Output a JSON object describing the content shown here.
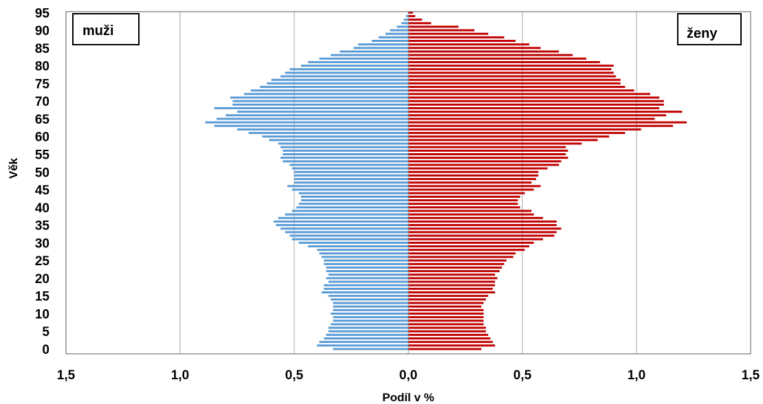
{
  "chart_data": {
    "type": "bar",
    "orientation": "horizontal",
    "xlabel": "Podíl v %",
    "ylabel": "Věk",
    "xlim": [
      -1.5,
      1.5
    ],
    "ylim": [
      0,
      95
    ],
    "x_ticks": [
      -1.5,
      -1.0,
      -0.5,
      0.0,
      0.5,
      1.0,
      1.5
    ],
    "x_tick_labels": [
      "1,5",
      "1,0",
      "0,5",
      "0,0",
      "0,5",
      "1,0",
      "1,5"
    ],
    "y_ticks": [
      0,
      5,
      10,
      15,
      20,
      25,
      30,
      35,
      40,
      45,
      50,
      55,
      60,
      65,
      70,
      75,
      80,
      85,
      90,
      95
    ],
    "y_tick_labels": [
      "0",
      "5",
      "10",
      "15",
      "20",
      "25",
      "30",
      "35",
      "40",
      "45",
      "50",
      "55",
      "60",
      "65",
      "70",
      "75",
      "80",
      "85",
      "90",
      "95"
    ],
    "grid": "vertical",
    "ages": [
      0,
      1,
      2,
      3,
      4,
      5,
      6,
      7,
      8,
      9,
      10,
      11,
      12,
      13,
      14,
      15,
      16,
      17,
      18,
      19,
      20,
      21,
      22,
      23,
      24,
      25,
      26,
      27,
      28,
      29,
      30,
      31,
      32,
      33,
      34,
      35,
      36,
      37,
      38,
      39,
      40,
      41,
      42,
      43,
      44,
      45,
      46,
      47,
      48,
      49,
      50,
      51,
      52,
      53,
      54,
      55,
      56,
      57,
      58,
      59,
      60,
      61,
      62,
      63,
      64,
      65,
      66,
      67,
      68,
      69,
      70,
      71,
      72,
      73,
      74,
      75,
      76,
      77,
      78,
      79,
      80,
      81,
      82,
      83,
      84,
      85,
      86,
      87,
      88,
      89,
      90,
      91,
      92,
      93,
      94,
      95
    ],
    "series": [
      {
        "name": "muži",
        "color": "#5b9bd5",
        "values": [
          0.33,
          0.4,
          0.39,
          0.37,
          0.36,
          0.35,
          0.35,
          0.34,
          0.33,
          0.33,
          0.34,
          0.33,
          0.33,
          0.33,
          0.34,
          0.35,
          0.38,
          0.37,
          0.37,
          0.35,
          0.36,
          0.35,
          0.36,
          0.36,
          0.37,
          0.37,
          0.38,
          0.39,
          0.4,
          0.44,
          0.48,
          0.51,
          0.52,
          0.54,
          0.56,
          0.58,
          0.59,
          0.57,
          0.54,
          0.51,
          0.49,
          0.48,
          0.47,
          0.47,
          0.48,
          0.51,
          0.53,
          0.5,
          0.5,
          0.5,
          0.5,
          0.51,
          0.52,
          0.55,
          0.56,
          0.55,
          0.55,
          0.56,
          0.57,
          0.61,
          0.64,
          0.7,
          0.75,
          0.85,
          0.89,
          0.84,
          0.8,
          0.75,
          0.85,
          0.77,
          0.77,
          0.78,
          0.72,
          0.69,
          0.65,
          0.62,
          0.6,
          0.56,
          0.54,
          0.52,
          0.47,
          0.44,
          0.39,
          0.34,
          0.3,
          0.24,
          0.22,
          0.16,
          0.13,
          0.1,
          0.08,
          0.05,
          0.03,
          0.02,
          0.01,
          0.0
        ]
      },
      {
        "name": "ženy",
        "color": "#c00000",
        "values": [
          0.32,
          0.38,
          0.37,
          0.36,
          0.35,
          0.34,
          0.34,
          0.33,
          0.33,
          0.33,
          0.33,
          0.33,
          0.32,
          0.33,
          0.34,
          0.35,
          0.38,
          0.37,
          0.38,
          0.38,
          0.39,
          0.38,
          0.4,
          0.41,
          0.42,
          0.43,
          0.46,
          0.47,
          0.51,
          0.53,
          0.55,
          0.59,
          0.64,
          0.65,
          0.67,
          0.65,
          0.65,
          0.59,
          0.55,
          0.54,
          0.49,
          0.48,
          0.48,
          0.49,
          0.51,
          0.55,
          0.58,
          0.54,
          0.56,
          0.57,
          0.57,
          0.61,
          0.66,
          0.67,
          0.7,
          0.69,
          0.7,
          0.69,
          0.76,
          0.83,
          0.88,
          0.95,
          1.02,
          1.16,
          1.22,
          1.08,
          1.13,
          1.2,
          1.1,
          1.12,
          1.12,
          1.1,
          1.06,
          0.99,
          0.95,
          0.93,
          0.93,
          0.91,
          0.9,
          0.89,
          0.9,
          0.84,
          0.78,
          0.72,
          0.66,
          0.58,
          0.53,
          0.47,
          0.42,
          0.35,
          0.29,
          0.22,
          0.1,
          0.06,
          0.03,
          0.02
        ]
      }
    ],
    "legend": [
      {
        "label": "muži",
        "position": "top-left"
      },
      {
        "label": "ženy",
        "position": "top-right"
      }
    ]
  }
}
